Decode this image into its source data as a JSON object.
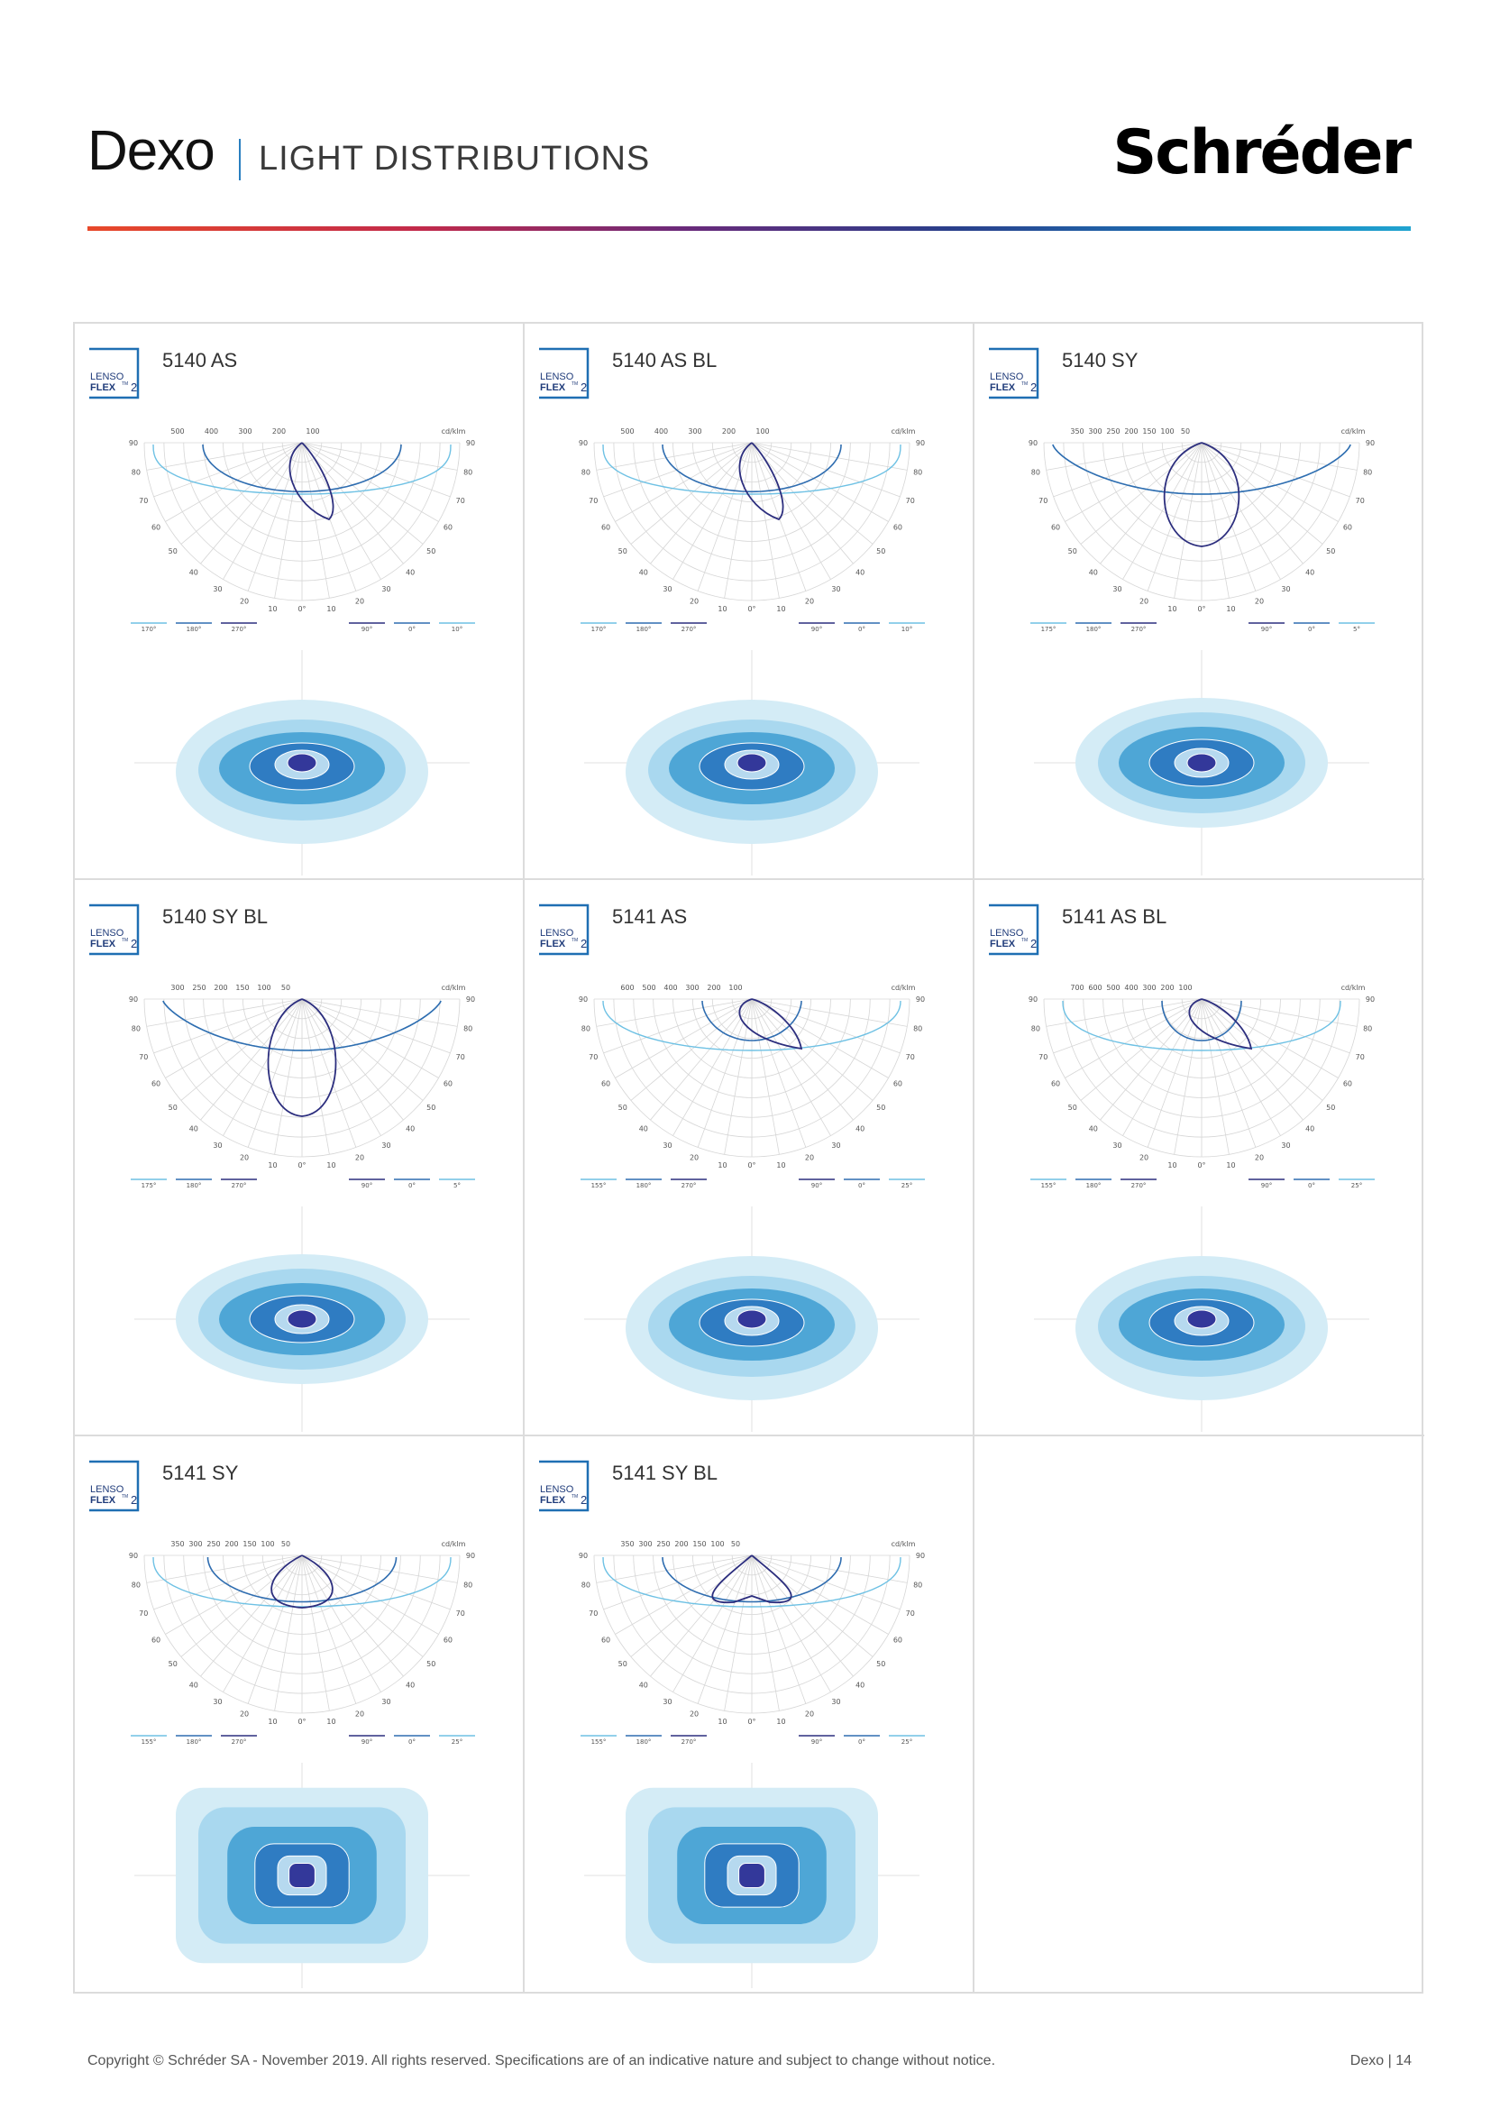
{
  "header": {
    "title": "Dexo",
    "subtitle": "LIGHT DISTRIBUTIONS",
    "logo": "Schréder"
  },
  "badge": {
    "line1": "LENSO",
    "line2": "FLEX",
    "num": "2",
    "tm": "TM"
  },
  "colors": {
    "accent": "#1f6fb3",
    "navy": "#2c2e7e",
    "light": "#d4ecf6",
    "mid": "#5aaed8"
  },
  "cells": [
    {
      "name": "5140 AS",
      "top_labels": [
        "500",
        "400",
        "300",
        "200",
        "100"
      ],
      "unit": "cd/klm",
      "legend": [
        "170°",
        "180°",
        "270°",
        "90°",
        "0°",
        "10°"
      ]
    },
    {
      "name": "5140 AS BL",
      "top_labels": [
        "500",
        "400",
        "300",
        "200",
        "100"
      ],
      "unit": "cd/klm",
      "legend": [
        "170°",
        "180°",
        "270°",
        "90°",
        "0°",
        "10°"
      ]
    },
    {
      "name": "5140 SY",
      "top_labels": [
        "350",
        "300",
        "250",
        "200",
        "150",
        "100",
        "50"
      ],
      "unit": "cd/klm",
      "legend": [
        "175°",
        "180°",
        "270°",
        "90°",
        "0°",
        "5°"
      ]
    },
    {
      "name": "5140 SY BL",
      "top_labels": [
        "300",
        "250",
        "200",
        "150",
        "100",
        "50"
      ],
      "unit": "cd/klm",
      "legend": [
        "175°",
        "180°",
        "270°",
        "90°",
        "0°",
        "5°"
      ]
    },
    {
      "name": "5141 AS",
      "top_labels": [
        "600",
        "500",
        "400",
        "300",
        "200",
        "100"
      ],
      "unit": "cd/klm",
      "legend": [
        "155°",
        "180°",
        "270°",
        "90°",
        "0°",
        "25°"
      ]
    },
    {
      "name": "5141 AS BL",
      "top_labels": [
        "700",
        "600",
        "500",
        "400",
        "300",
        "200",
        "100"
      ],
      "unit": "cd/klm",
      "legend": [
        "155°",
        "180°",
        "270°",
        "90°",
        "0°",
        "25°"
      ]
    },
    {
      "name": "5141 SY",
      "top_labels": [
        "350",
        "300",
        "250",
        "200",
        "150",
        "100",
        "50"
      ],
      "unit": "cd/klm",
      "legend": [
        "155°",
        "180°",
        "270°",
        "90°",
        "0°",
        "25°"
      ]
    },
    {
      "name": "5141 SY BL",
      "top_labels": [
        "350",
        "300",
        "250",
        "200",
        "150",
        "100",
        "50"
      ],
      "unit": "cd/klm",
      "legend": [
        "155°",
        "180°",
        "270°",
        "90°",
        "0°",
        "25°"
      ]
    }
  ],
  "angle_labels": [
    "90",
    "80",
    "70",
    "60",
    "50",
    "40",
    "30",
    "20",
    "10",
    "0°"
  ],
  "footer": {
    "copyright": "Copyright © Schréder SA - November 2019. All rights reserved. Specifications are of an indicative nature and subject to change without notice.",
    "page": "Dexo | 14"
  }
}
